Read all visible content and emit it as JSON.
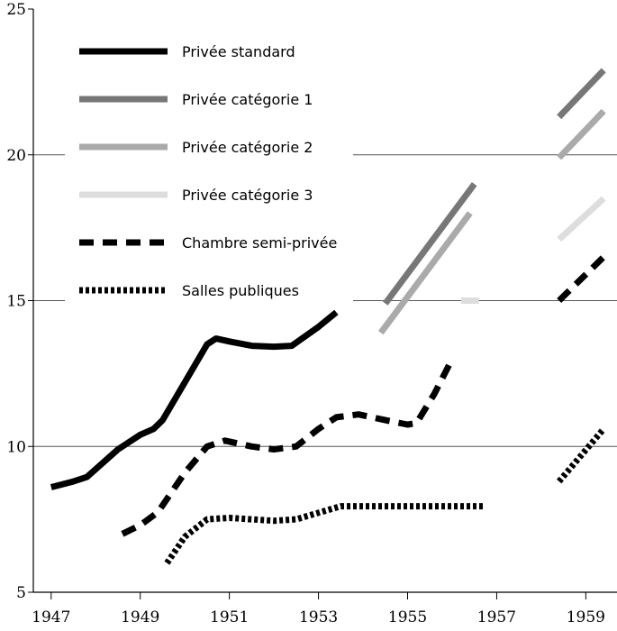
{
  "chart_data": {
    "type": "line",
    "xlim": [
      1946.6,
      1959.7
    ],
    "ylim": [
      5,
      25
    ],
    "y_ticks": [
      5,
      10,
      15,
      20,
      25
    ],
    "y_tick_labels": [
      "5",
      "10",
      "15",
      "20",
      "25"
    ],
    "gridlines_y": [
      10,
      15,
      20
    ],
    "x_ticks": [
      1947,
      1949,
      1951,
      1953,
      1955,
      1957,
      1959
    ],
    "x_tick_labels": [
      "1947",
      "1949",
      "1951",
      "1953",
      "1955",
      "1957",
      "1959"
    ],
    "legend_position": "top-left",
    "series": [
      {
        "name": "Privée standard",
        "color": "#000000",
        "style": "solid",
        "segments": [
          [
            [
              1947.0,
              8.6
            ],
            [
              1947.5,
              8.8
            ],
            [
              1947.8,
              8.95
            ],
            [
              1948.5,
              9.9
            ],
            [
              1949.0,
              10.4
            ],
            [
              1949.3,
              10.6
            ],
            [
              1949.5,
              10.9
            ],
            [
              1950.0,
              12.2
            ],
            [
              1950.5,
              13.5
            ],
            [
              1950.7,
              13.7
            ],
            [
              1951.0,
              13.6
            ],
            [
              1951.5,
              13.45
            ],
            [
              1952.0,
              13.42
            ],
            [
              1952.4,
              13.45
            ],
            [
              1953.0,
              14.1
            ],
            [
              1953.4,
              14.6
            ]
          ]
        ]
      },
      {
        "name": "Privée catégorie 1",
        "color": "#777777",
        "style": "solid",
        "segments": [
          [
            [
              1954.5,
              14.9
            ],
            [
              1956.5,
              19.0
            ]
          ],
          [
            [
              1958.4,
              21.3
            ],
            [
              1959.4,
              22.9
            ]
          ]
        ]
      },
      {
        "name": "Privée catégorie 2",
        "color": "#aaaaaa",
        "style": "solid",
        "segments": [
          [
            [
              1954.4,
              13.9
            ],
            [
              1956.4,
              18.0
            ]
          ],
          [
            [
              1958.4,
              19.9
            ],
            [
              1959.4,
              21.5
            ]
          ]
        ]
      },
      {
        "name": "Privée catégorie 3",
        "color": "#dddddd",
        "style": "solid",
        "segments": [
          [
            [
              1956.2,
              15.0
            ],
            [
              1956.6,
              15.0
            ]
          ],
          [
            [
              1958.4,
              17.1
            ],
            [
              1959.4,
              18.5
            ]
          ]
        ]
      },
      {
        "name": "Chambre semi-privée",
        "color": "#000000",
        "style": "dashed",
        "segments": [
          [
            [
              1948.6,
              7.0
            ],
            [
              1949.0,
              7.3
            ],
            [
              1949.4,
              7.75
            ],
            [
              1950.0,
              9.1
            ],
            [
              1950.5,
              10.0
            ],
            [
              1950.9,
              10.2
            ],
            [
              1951.5,
              10.0
            ],
            [
              1952.0,
              9.9
            ],
            [
              1952.5,
              10.0
            ],
            [
              1953.0,
              10.6
            ],
            [
              1953.4,
              11.0
            ],
            [
              1953.9,
              11.1
            ],
            [
              1954.5,
              10.9
            ],
            [
              1955.0,
              10.75
            ],
            [
              1955.2,
              10.8
            ],
            [
              1955.6,
              11.8
            ],
            [
              1956.0,
              13.0
            ]
          ],
          [
            [
              1958.4,
              15.0
            ],
            [
              1959.4,
              16.5
            ]
          ]
        ]
      },
      {
        "name": "Salles publiques",
        "color": "#000000",
        "style": "dotted",
        "segments": [
          [
            [
              1949.6,
              6.0
            ],
            [
              1950.0,
              6.9
            ],
            [
              1950.5,
              7.5
            ],
            [
              1951.0,
              7.55
            ],
            [
              1951.5,
              7.5
            ],
            [
              1952.0,
              7.45
            ],
            [
              1952.5,
              7.5
            ],
            [
              1953.5,
              7.95
            ],
            [
              1954.0,
              7.95
            ],
            [
              1956.7,
              7.95
            ]
          ],
          [
            [
              1958.4,
              8.8
            ],
            [
              1959.4,
              10.6
            ]
          ]
        ]
      }
    ]
  }
}
